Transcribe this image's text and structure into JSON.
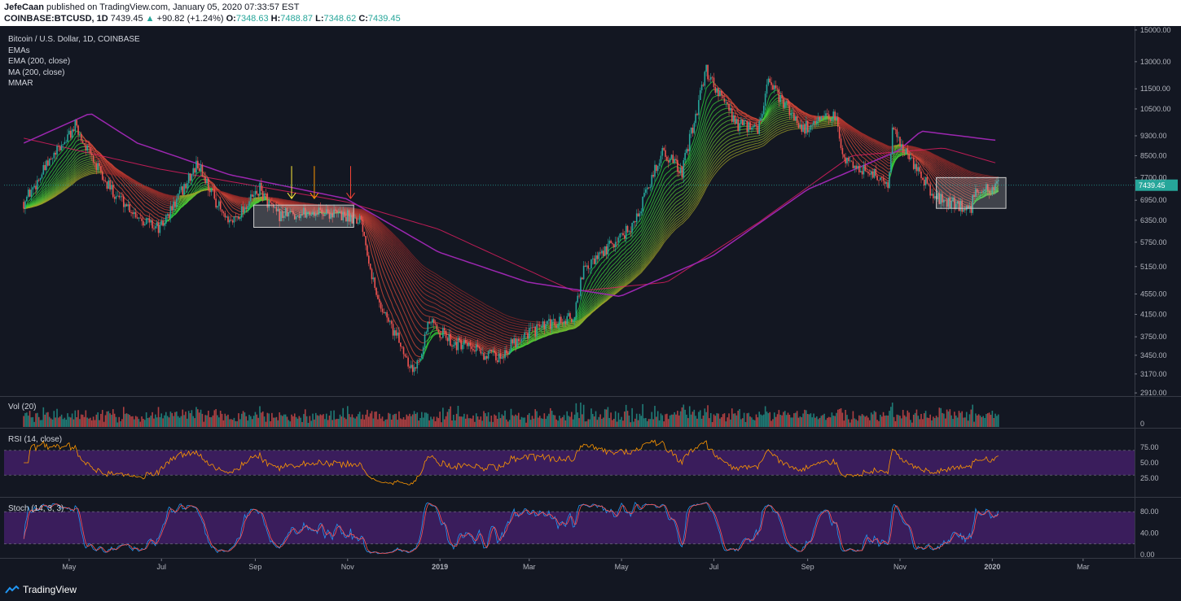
{
  "header": {
    "author": "JefeCaan",
    "published": "published on TradingView.com, January 05, 2020 07:33:57 EST",
    "symbol": "COINBASE:BTCUSD, 1D",
    "price": "7439.45",
    "change_arrow": "▲",
    "change": "+90.82 (+1.24%)",
    "o_label": "O:",
    "o_val": "7348.63",
    "h_label": "H:",
    "h_val": "7488.87",
    "l_label": "L:",
    "l_val": "7348.62",
    "c_label": "C:",
    "c_val": "7439.45"
  },
  "legend": {
    "title": "Bitcoin / U.S. Dollar, 1D, COINBASE",
    "line1": "EMAs",
    "line2": "EMA (200, close)",
    "line3": "MA (200, close)",
    "line4": "MMAR"
  },
  "panes": {
    "vol": "Vol (20)",
    "rsi": "RSI (14, close)",
    "stoch": "Stoch (14, 3, 3)"
  },
  "footer": {
    "brand": "TradingView"
  },
  "colors": {
    "background": "#131722",
    "up": "#26a69a",
    "down": "#ef5350",
    "ema200": "#9c27b0",
    "ma200": "#e91e63",
    "rsi": "#ff9800",
    "rsi_band": "#3a1d5c",
    "stoch_k": "#2196f3",
    "stoch_d": "#ff5252"
  },
  "chart_data": {
    "type": "candlestick",
    "title": "Bitcoin / U.S. Dollar, 1D, COINBASE",
    "price_axis": {
      "scale": "log",
      "ticks": [
        2910,
        3170,
        3450,
        3750,
        4150,
        4550,
        5150,
        5750,
        6350,
        6950,
        7700,
        8500,
        9300,
        10500,
        11500,
        13000,
        15000
      ],
      "tick_labels": [
        "2910.00",
        "3170.00",
        "3450.00",
        "3750.00",
        "4150.00",
        "4550.00",
        "5150.00",
        "5750.00",
        "6350.00",
        "6950.00",
        "7700.00",
        "8500.00",
        "9300.00",
        "10500.00",
        "11500.00",
        "13000.00",
        "15000.00"
      ],
      "last_price": "7439.45"
    },
    "time_axis": {
      "labels": [
        "May",
        "Jul",
        "Sep",
        "Nov",
        "2019",
        "Mar",
        "May",
        "Jul",
        "Sep",
        "Nov",
        "2020",
        "Mar"
      ]
    },
    "price_path": [
      [
        "2018-04-01",
        6900
      ],
      [
        "2018-04-15",
        8000
      ],
      [
        "2018-05-05",
        9700
      ],
      [
        "2018-05-25",
        7500
      ],
      [
        "2018-06-15",
        6500
      ],
      [
        "2018-06-30",
        6100
      ],
      [
        "2018-07-25",
        8200
      ],
      [
        "2018-08-14",
        6200
      ],
      [
        "2018-09-04",
        7300
      ],
      [
        "2018-09-15",
        6500
      ],
      [
        "2018-10-15",
        6600
      ],
      [
        "2018-11-10",
        6400
      ],
      [
        "2018-11-20",
        4500
      ],
      [
        "2018-12-15",
        3200
      ],
      [
        "2018-12-25",
        4000
      ],
      [
        "2019-01-10",
        3650
      ],
      [
        "2019-02-08",
        3400
      ],
      [
        "2019-02-25",
        3800
      ],
      [
        "2019-03-31",
        4100
      ],
      [
        "2019-04-05",
        5000
      ],
      [
        "2019-05-10",
        6300
      ],
      [
        "2019-05-28",
        8700
      ],
      [
        "2019-06-10",
        7900
      ],
      [
        "2019-06-26",
        12500
      ],
      [
        "2019-07-16",
        9800
      ],
      [
        "2019-07-30",
        9500
      ],
      [
        "2019-08-06",
        11800
      ],
      [
        "2019-08-29",
        9600
      ],
      [
        "2019-09-19",
        10200
      ],
      [
        "2019-09-25",
        8400
      ],
      [
        "2019-10-24",
        7500
      ],
      [
        "2019-10-27",
        9500
      ],
      [
        "2019-11-25",
        7000
      ],
      [
        "2019-12-18",
        6700
      ],
      [
        "2019-12-20",
        7200
      ],
      [
        "2020-01-05",
        7439
      ]
    ],
    "indicators": {
      "ema200": [
        [
          "2018-04-01",
          9000
        ],
        [
          "2018-05-15",
          10300
        ],
        [
          "2018-06-15",
          9000
        ],
        [
          "2018-08-15",
          7800
        ],
        [
          "2018-10-31",
          7000
        ],
        [
          "2018-12-31",
          5500
        ],
        [
          "2019-02-28",
          4800
        ],
        [
          "2019-04-30",
          4500
        ],
        [
          "2019-06-30",
          5400
        ],
        [
          "2019-09-01",
          7300
        ],
        [
          "2019-10-31",
          8700
        ],
        [
          "2019-11-15",
          9500
        ],
        [
          "2020-01-05",
          9100
        ]
      ],
      "ma200": [
        [
          "2018-04-01",
          9200
        ],
        [
          "2018-06-30",
          8000
        ],
        [
          "2018-10-31",
          6900
        ],
        [
          "2018-12-31",
          6100
        ],
        [
          "2019-03-31",
          4600
        ],
        [
          "2019-05-31",
          4800
        ],
        [
          "2019-07-31",
          6300
        ],
        [
          "2019-09-30",
          8500
        ],
        [
          "2019-11-30",
          8800
        ],
        [
          "2020-01-05",
          8200
        ]
      ]
    },
    "boxes": [
      {
        "start": "2018-08-31",
        "end": "2018-11-05",
        "low": 6150,
        "high": 6800
      },
      {
        "start": "2019-11-25",
        "end": "2020-01-10",
        "low": 6700,
        "high": 7700
      }
    ],
    "arrows": [
      {
        "date": "2018-09-25",
        "color": "#ffeb3b"
      },
      {
        "date": "2018-10-10",
        "color": "#ff9800"
      },
      {
        "date": "2018-11-03",
        "color": "#f44336"
      }
    ],
    "rsi": {
      "ticks": [
        25,
        50,
        75
      ],
      "tick_labels": [
        "25.00",
        "50.00",
        "75.00"
      ],
      "band": [
        30,
        70
      ]
    },
    "stoch": {
      "ticks": [
        0,
        40,
        80
      ],
      "tick_labels": [
        "0.00",
        "40.00",
        "80.00"
      ],
      "band": [
        20,
        80
      ]
    },
    "volume": {
      "tick_labels": [
        "0"
      ]
    }
  }
}
